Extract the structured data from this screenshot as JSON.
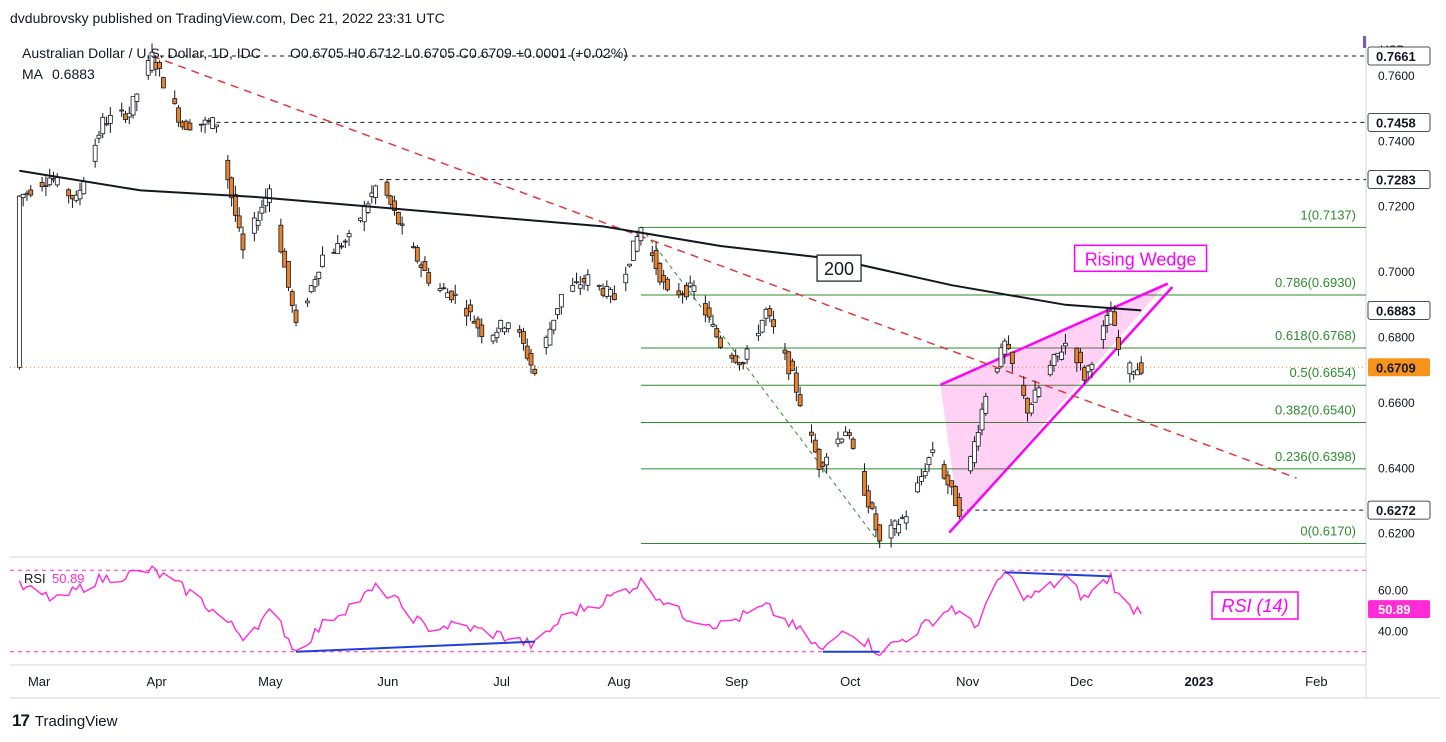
{
  "header": {
    "publisher": "dvdubrovsky published on TradingView.com, Dec 21, 2022 23:31 UTC",
    "symbol": "Australian Dollar / U.S. Dollar, 1D, IDC",
    "ohlc": "O0.6705  H0.6712  L0.6705  C0.6709  +0.0001 (+0.02%)",
    "ma_label": "MA",
    "ma_value": "0.6883"
  },
  "footer": {
    "brand": "TradingView"
  },
  "colors": {
    "up": "#ffffff",
    "down": "#e8822b",
    "ma": "#131722",
    "trend": "#e0393e",
    "wedge": "#ff00ff",
    "fib": "#2e8b2e",
    "rsi": "#ff2bd6",
    "divergence": "#1e3fd8"
  },
  "chart_data": [
    {
      "type": "candlestick",
      "title": "Australian Dollar / U.S. Dollar, 1D, IDC",
      "currency": "USD",
      "x_ticks": [
        "Mar",
        "Apr",
        "May",
        "Jun",
        "Jul",
        "Aug",
        "Sep",
        "Oct",
        "Nov",
        "Dec",
        "2023",
        "Feb"
      ],
      "ylim": [
        0.615,
        0.771
      ],
      "y_ticks": [
        "0.7600",
        "0.7400",
        "0.7200",
        "0.7000",
        "0.6800",
        "0.6600",
        "0.6400",
        "0.6200"
      ],
      "price_path": [
        [
          "2022-02-28",
          0.723
        ],
        [
          "2022-03-08",
          0.729
        ],
        [
          "2022-03-15",
          0.722
        ],
        [
          "2022-03-22",
          0.746
        ],
        [
          "2022-03-29",
          0.749
        ],
        [
          "2022-04-04",
          0.7661
        ],
        [
          "2022-04-12",
          0.745
        ],
        [
          "2022-04-21",
          0.7458
        ],
        [
          "2022-04-28",
          0.706
        ],
        [
          "2022-05-05",
          0.726
        ],
        [
          "2022-05-12",
          0.683
        ],
        [
          "2022-05-19",
          0.705
        ],
        [
          "2022-05-26",
          0.71
        ],
        [
          "2022-06-03",
          0.7283
        ],
        [
          "2022-06-10",
          0.71
        ],
        [
          "2022-06-17",
          0.696
        ],
        [
          "2022-06-24",
          0.692
        ],
        [
          "2022-07-01",
          0.68
        ],
        [
          "2022-07-08",
          0.686
        ],
        [
          "2022-07-14",
          0.669
        ],
        [
          "2022-07-21",
          0.693
        ],
        [
          "2022-07-28",
          0.698
        ],
        [
          "2022-08-04",
          0.692
        ],
        [
          "2022-08-11",
          0.7137
        ],
        [
          "2022-08-18",
          0.693
        ],
        [
          "2022-08-25",
          0.695
        ],
        [
          "2022-09-01",
          0.678
        ],
        [
          "2022-09-07",
          0.672
        ],
        [
          "2022-09-13",
          0.688
        ],
        [
          "2022-09-20",
          0.668
        ],
        [
          "2022-09-27",
          0.641
        ],
        [
          "2022-10-04",
          0.652
        ],
        [
          "2022-10-11",
          0.626
        ],
        [
          "2022-10-13",
          0.617
        ],
        [
          "2022-10-20",
          0.626
        ],
        [
          "2022-10-27",
          0.646
        ],
        [
          "2022-11-03",
          0.6272
        ],
        [
          "2022-11-10",
          0.663
        ],
        [
          "2022-11-15",
          0.678
        ],
        [
          "2022-11-21",
          0.658
        ],
        [
          "2022-11-28",
          0.673
        ],
        [
          "2022-12-02",
          0.68
        ],
        [
          "2022-12-06",
          0.668
        ],
        [
          "2022-12-13",
          0.688
        ],
        [
          "2022-12-16",
          0.67
        ],
        [
          "2022-12-21",
          0.6709
        ]
      ],
      "moving_average": {
        "label": "200",
        "points": [
          [
            "2022-02-28",
            0.731
          ],
          [
            "2022-04-01",
            0.725
          ],
          [
            "2022-05-01",
            0.723
          ],
          [
            "2022-06-01",
            0.72
          ],
          [
            "2022-07-01",
            0.717
          ],
          [
            "2022-08-01",
            0.714
          ],
          [
            "2022-09-01",
            0.708
          ],
          [
            "2022-10-01",
            0.704
          ],
          [
            "2022-11-01",
            0.696
          ],
          [
            "2022-12-01",
            0.69
          ],
          [
            "2022-12-21",
            0.6883
          ]
        ]
      },
      "fibonacci": [
        {
          "label": "1(0.7137)",
          "level": 0.7137
        },
        {
          "label": "0.786(0.6930)",
          "level": 0.693
        },
        {
          "label": "0.618(0.6768)",
          "level": 0.6768
        },
        {
          "label": "0.5(0.6654)",
          "level": 0.6654
        },
        {
          "label": "0.382(0.6540)",
          "level": 0.654
        },
        {
          "label": "0.236(0.6398)",
          "level": 0.6398
        },
        {
          "label": "0(0.6170)",
          "level": 0.617
        }
      ],
      "horizontal_levels": [
        {
          "label": "0.7661",
          "level": 0.7661,
          "from": "2022-04-04"
        },
        {
          "label": "0.7458",
          "level": 0.7458,
          "from": "2022-04-21"
        },
        {
          "label": "0.7283",
          "level": 0.7283,
          "from": "2022-06-03"
        },
        {
          "label": "0.6272",
          "level": 0.6272,
          "from": "2022-11-03"
        }
      ],
      "trendline": {
        "from": [
          "2022-04-04",
          0.7661
        ],
        "to": [
          "2023-01-31",
          0.637
        ]
      },
      "swing_line": {
        "from": [
          "2022-08-11",
          0.7137
        ],
        "to": [
          "2022-10-13",
          0.617
        ]
      },
      "rising_wedge": {
        "label": "Rising Wedge",
        "upper": {
          "from": [
            "2022-10-29",
            0.6655
          ],
          "to": [
            "2022-12-28",
            0.6965
          ]
        },
        "lower": {
          "from": [
            "2022-11-03",
            0.624
          ],
          "to": [
            "2022-12-25",
            0.693
          ]
        }
      },
      "price_labels": [
        {
          "label": "0.7661",
          "level": 0.7661,
          "style": "dark"
        },
        {
          "label": "0.7458",
          "level": 0.7458,
          "style": "dark"
        },
        {
          "label": "0.7283",
          "level": 0.7283,
          "style": "dark"
        },
        {
          "label": "0.6883",
          "level": 0.6883,
          "style": "dark"
        },
        {
          "label": "0.6709",
          "level": 0.6709,
          "style": "orange"
        },
        {
          "label": "0.6272",
          "level": 0.6272,
          "style": "dark"
        }
      ],
      "last_price": 0.6709
    },
    {
      "type": "line",
      "title": "RSI",
      "legend_label": "RSI",
      "legend_value": "50.89",
      "annotation": "RSI (14)",
      "ylim": [
        25,
        75
      ],
      "y_ticks": [
        "60.00",
        "40.00"
      ],
      "bands": [
        70,
        30
      ],
      "last_value": "50.89",
      "series": [
        {
          "points": [
            [
              "2022-02-28",
              62
            ],
            [
              "2022-03-10",
              55
            ],
            [
              "2022-03-20",
              65
            ],
            [
              "2022-04-04",
              70
            ],
            [
              "2022-04-15",
              58
            ],
            [
              "2022-04-28",
              38
            ],
            [
              "2022-05-06",
              50
            ],
            [
              "2022-05-12",
              30
            ],
            [
              "2022-05-20",
              45
            ],
            [
              "2022-06-03",
              62
            ],
            [
              "2022-06-15",
              42
            ],
            [
              "2022-06-24",
              43
            ],
            [
              "2022-07-05",
              38
            ],
            [
              "2022-07-14",
              33
            ],
            [
              "2022-07-22",
              48
            ],
            [
              "2022-08-01",
              55
            ],
            [
              "2022-08-11",
              64
            ],
            [
              "2022-08-22",
              48
            ],
            [
              "2022-09-01",
              43
            ],
            [
              "2022-09-13",
              52
            ],
            [
              "2022-09-22",
              40
            ],
            [
              "2022-09-28",
              30
            ],
            [
              "2022-10-04",
              42
            ],
            [
              "2022-10-13",
              30
            ],
            [
              "2022-10-21",
              38
            ],
            [
              "2022-11-01",
              52
            ],
            [
              "2022-11-07",
              42
            ],
            [
              "2022-11-15",
              69
            ],
            [
              "2022-11-21",
              56
            ],
            [
              "2022-12-01",
              66
            ],
            [
              "2022-12-06",
              56
            ],
            [
              "2022-12-13",
              67
            ],
            [
              "2022-12-16",
              52
            ],
            [
              "2022-12-21",
              50.89
            ]
          ]
        }
      ],
      "divergence_lines": [
        {
          "from": [
            "2022-05-12",
            30
          ],
          "to": [
            "2022-07-14",
            35
          ]
        },
        {
          "from": [
            "2022-09-28",
            30
          ],
          "to": [
            "2022-10-13",
            30
          ]
        },
        {
          "from": [
            "2022-11-15",
            69
          ],
          "to": [
            "2022-12-13",
            67
          ]
        }
      ]
    }
  ]
}
